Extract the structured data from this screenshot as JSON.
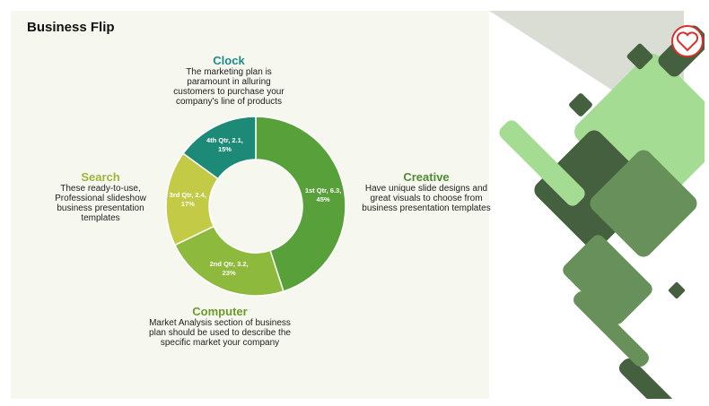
{
  "chart_data": {
    "type": "donut",
    "title": "Business Flip",
    "categories": [
      "1st Qtr",
      "2nd Qtr",
      "3rd Qtr",
      "4th Qtr"
    ],
    "values": [
      6.3,
      3.2,
      2.4,
      2.1
    ],
    "value_labels": [
      "1st Qtr, 6.3, 45%",
      "2nd Qtr, 3.2, 23%",
      "3rd Qtr, 2.4, 17%",
      "4th Qtr, 2.1, 15%"
    ],
    "colors": [
      "#58a03a",
      "#8dba3c",
      "#c3cb46",
      "#1d8a78"
    ],
    "annotations": [
      {
        "title": "Clock",
        "text": "The marketing plan is paramount in alluring customers to purchase your company's line of products",
        "color": "#1e8b8b"
      },
      {
        "title": "Search",
        "text": "These ready-to-use, Professional slideshow business presentation templates",
        "color": "#9cb63b"
      },
      {
        "title": "Creative",
        "text": "Have unique slide designs and great visuals to choose from business presentation templates",
        "color": "#4c8c30"
      },
      {
        "title": "Computer",
        "text": "Market Analysis section of business plan should be used to describe the specific market your company",
        "color": "#6b9b2b"
      }
    ]
  }
}
